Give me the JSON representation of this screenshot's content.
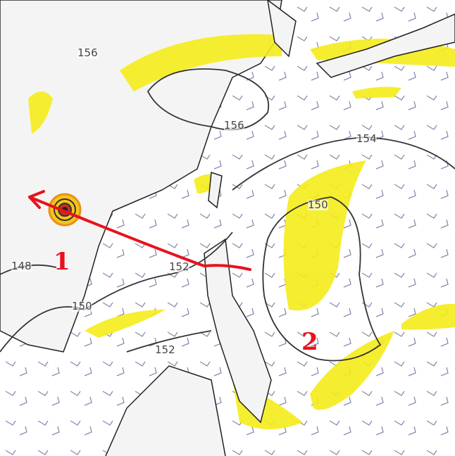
{
  "contour_labels": [
    "156",
    "156",
    "154",
    "150",
    "148",
    "152",
    "150",
    "152"
  ],
  "markers": {
    "one": "1",
    "two": "2"
  },
  "colors": {
    "jet_shading": "#f5ec1a",
    "contour": "#333333",
    "coast": "#222222",
    "arrow": "#e8121c",
    "wind_barbs": "#8a8ab0",
    "land_border": "#b0b0b0"
  }
}
